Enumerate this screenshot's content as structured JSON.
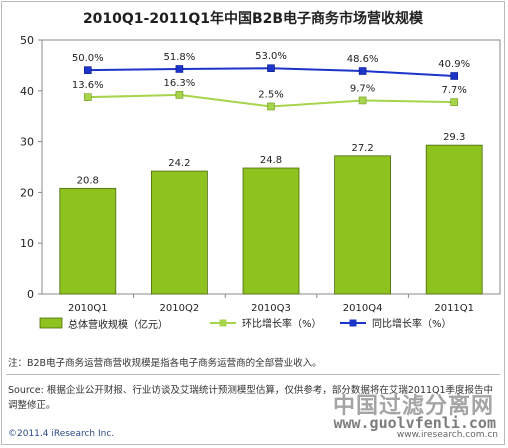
{
  "chart_data": {
    "type": "bar",
    "title": "2010Q1-2011Q1年中国B2B电子商务市场营收规模",
    "categories": [
      "2010Q1",
      "2010Q2",
      "2010Q3",
      "2010Q4",
      "2011Q1"
    ],
    "ylim": [
      0,
      50
    ],
    "yticks": [
      0,
      10,
      20,
      30,
      40,
      50
    ],
    "bar_series": {
      "name": "总体营收规模（亿元）",
      "values": [
        20.8,
        24.2,
        24.8,
        27.2,
        29.3
      ],
      "labels": [
        "20.8",
        "24.2",
        "24.8",
        "27.2",
        "29.3"
      ],
      "color": "#8dc21f"
    },
    "line_series": [
      {
        "name": "环比增长率（%）",
        "rates": [
          13.6,
          16.3,
          2.5,
          9.7,
          7.7
        ],
        "labels": [
          "13.6%",
          "16.3%",
          "2.5%",
          "9.7%",
          "7.7%"
        ],
        "color": "#a6d44b"
      },
      {
        "name": "同比增长率（%）",
        "rates": [
          50.0,
          51.8,
          53.0,
          48.6,
          40.9
        ],
        "labels": [
          "50.0%",
          "51.8%",
          "53.0%",
          "48.6%",
          "40.9%"
        ],
        "color": "#1c34c8"
      }
    ],
    "grid": false,
    "legend_position": "bottom"
  },
  "note": "注：B2B电子商务运营商营收规模是指各电子商务运营商的全部营业收入。",
  "source": "Source: 根据企业公开财报、行业访谈及艾瑞统计预测模型估算，仅供参考，部分数据将在艾瑞2011Q1季度报告中调整修正。",
  "copyright": "©2011.4 iResearch Inc.",
  "site": "www.iresearch.com.cn",
  "watermark": {
    "cn": "中国过滤分离网",
    "url": "www.guolvfenli.com"
  }
}
